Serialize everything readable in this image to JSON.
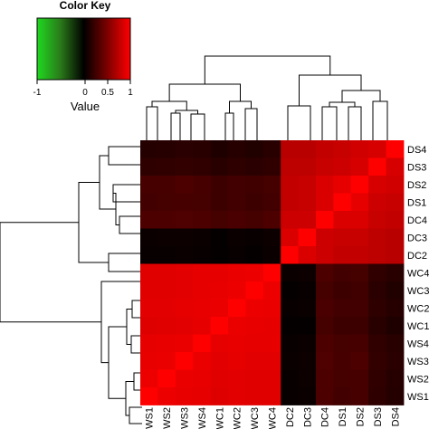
{
  "colors": {
    "low": "#00cc00",
    "mid": "#000000",
    "high": "#ff0000",
    "dendrogram": "#000000"
  },
  "chart_data": {
    "type": "heatmap",
    "legend": {
      "title": "Color Key",
      "xlabel": "Value",
      "ticks": [
        "-1",
        "0",
        "0.5",
        "1"
      ],
      "range": [
        -1,
        1
      ]
    },
    "rows": [
      "DS4",
      "DS3",
      "DS2",
      "DS1",
      "DC4",
      "DC3",
      "DC2",
      "WC4",
      "WC3",
      "WC2",
      "WC1",
      "WS4",
      "WS3",
      "WS2",
      "WS1"
    ],
    "columns": [
      "WS1",
      "WS2",
      "WS3",
      "WS4",
      "WC1",
      "WC2",
      "WC3",
      "WC4",
      "DC2",
      "DC3",
      "DC4",
      "DS1",
      "DS2",
      "DS3",
      "DS4"
    ],
    "values": [
      [
        0.14,
        0.15,
        0.17,
        0.16,
        0.12,
        0.15,
        0.13,
        0.16,
        0.72,
        0.72,
        0.76,
        0.78,
        0.82,
        0.84,
        1.0
      ],
      [
        0.18,
        0.19,
        0.2,
        0.19,
        0.16,
        0.18,
        0.17,
        0.19,
        0.74,
        0.74,
        0.78,
        0.8,
        0.84,
        1.0,
        0.84
      ],
      [
        0.28,
        0.28,
        0.3,
        0.28,
        0.24,
        0.26,
        0.25,
        0.27,
        0.76,
        0.78,
        0.86,
        0.9,
        1.0,
        0.84,
        0.82
      ],
      [
        0.26,
        0.27,
        0.28,
        0.27,
        0.24,
        0.26,
        0.24,
        0.26,
        0.76,
        0.78,
        0.86,
        1.0,
        0.9,
        0.8,
        0.78
      ],
      [
        0.3,
        0.3,
        0.31,
        0.3,
        0.27,
        0.29,
        0.27,
        0.3,
        0.8,
        0.8,
        1.0,
        0.86,
        0.86,
        0.78,
        0.76
      ],
      [
        0.04,
        0.05,
        0.05,
        0.04,
        0.02,
        0.04,
        0.03,
        0.05,
        0.86,
        1.0,
        0.8,
        0.78,
        0.78,
        0.74,
        0.72
      ],
      [
        0.03,
        0.03,
        0.04,
        0.03,
        0.02,
        0.03,
        0.02,
        0.04,
        1.0,
        0.86,
        0.8,
        0.76,
        0.76,
        0.74,
        0.72
      ],
      [
        0.88,
        0.88,
        0.89,
        0.9,
        0.9,
        0.92,
        0.93,
        1.0,
        0.04,
        0.05,
        0.3,
        0.26,
        0.27,
        0.19,
        0.16
      ],
      [
        0.88,
        0.88,
        0.89,
        0.9,
        0.91,
        0.93,
        1.0,
        0.93,
        0.02,
        0.03,
        0.27,
        0.24,
        0.25,
        0.17,
        0.13
      ],
      [
        0.89,
        0.89,
        0.9,
        0.91,
        0.92,
        1.0,
        0.93,
        0.92,
        0.03,
        0.04,
        0.29,
        0.26,
        0.26,
        0.18,
        0.15
      ],
      [
        0.87,
        0.88,
        0.89,
        0.9,
        1.0,
        0.92,
        0.91,
        0.9,
        0.02,
        0.02,
        0.27,
        0.24,
        0.24,
        0.16,
        0.12
      ],
      [
        0.9,
        0.91,
        0.92,
        1.0,
        0.9,
        0.91,
        0.9,
        0.9,
        0.03,
        0.04,
        0.3,
        0.27,
        0.28,
        0.19,
        0.16
      ],
      [
        0.91,
        0.92,
        1.0,
        0.92,
        0.89,
        0.9,
        0.89,
        0.89,
        0.04,
        0.05,
        0.31,
        0.28,
        0.3,
        0.2,
        0.17
      ],
      [
        0.93,
        1.0,
        0.92,
        0.91,
        0.88,
        0.89,
        0.88,
        0.88,
        0.03,
        0.05,
        0.3,
        0.27,
        0.28,
        0.19,
        0.15
      ],
      [
        1.0,
        0.93,
        0.91,
        0.9,
        0.87,
        0.89,
        0.88,
        0.88,
        0.03,
        0.04,
        0.3,
        0.26,
        0.28,
        0.18,
        0.14
      ]
    ]
  }
}
